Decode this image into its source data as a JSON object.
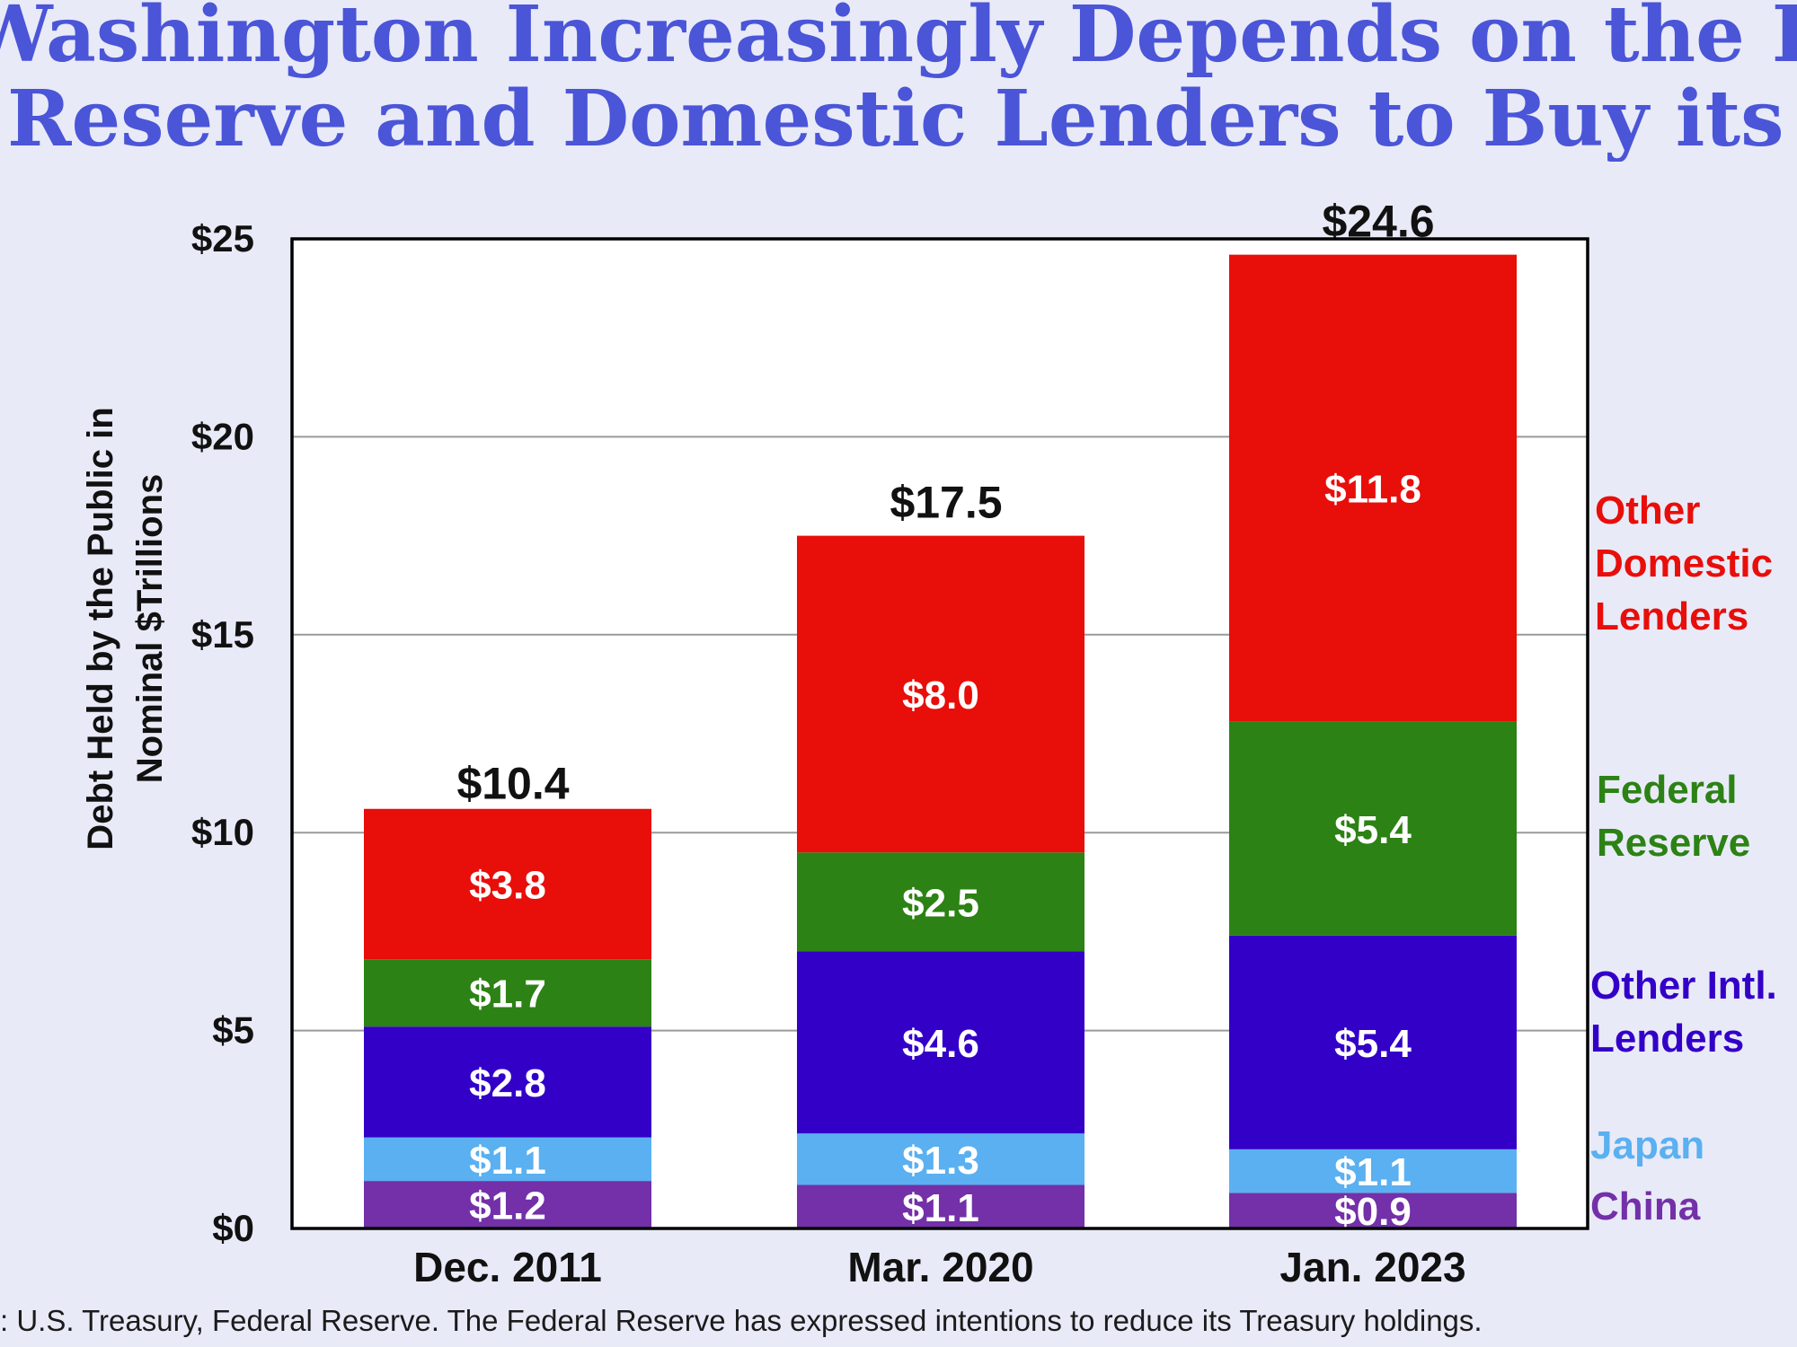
{
  "title_line1": "Washington Increasingly Depends on the Federal",
  "title_line2": "Reserve and Domestic Lenders to Buy its Debt",
  "source": ": U.S. Treasury, Federal Reserve. The Federal Reserve has expressed intentions to reduce its Treasury holdings.",
  "colors": {
    "China": "#7330a8",
    "Japan": "#5ab0f0",
    "Other Intl. Lenders": "#3300c8",
    "Federal Reserve": "#2c8214",
    "Other Domestic Lenders": "#e80e0a"
  },
  "chart_data": {
    "type": "bar",
    "stacked": true,
    "categories": [
      "Dec. 2011",
      "Mar. 2020",
      "Jan. 2023"
    ],
    "series": [
      {
        "name": "China",
        "values": [
          1.2,
          1.1,
          0.9
        ],
        "labels": [
          "$1.2",
          "$1.1",
          "$0.9"
        ]
      },
      {
        "name": "Japan",
        "values": [
          1.1,
          1.3,
          1.1
        ],
        "labels": [
          "$1.1",
          "$1.3",
          "$1.1"
        ]
      },
      {
        "name": "Other Intl. Lenders",
        "values": [
          2.8,
          4.6,
          5.4
        ],
        "labels": [
          "$2.8",
          "$4.6",
          "$5.4"
        ]
      },
      {
        "name": "Federal Reserve",
        "values": [
          1.7,
          2.5,
          5.4
        ],
        "labels": [
          "$1.7",
          "$2.5",
          "$5.4"
        ]
      },
      {
        "name": "Other Domestic Lenders",
        "values": [
          3.8,
          8.0,
          11.8
        ],
        "labels": [
          "$3.8",
          "$8.0",
          "$11.8"
        ]
      }
    ],
    "totals": [
      10.4,
      17.5,
      24.6
    ],
    "total_labels": [
      "$10.4",
      "$17.5",
      "$24.6"
    ],
    "ylabel_line1": "Debt Held by the Public in",
    "ylabel_line2": "Nominal $Trillions",
    "ylim": [
      0,
      25
    ],
    "yticks": [
      0,
      5,
      10,
      15,
      20,
      25
    ],
    "ytick_labels": [
      "$0",
      "$5",
      "$10",
      "$15",
      "$20",
      "$25"
    ],
    "grid": true,
    "legend": [
      {
        "series": "Other Domestic Lenders",
        "lines": [
          "Other",
          "Domestic",
          "Lenders"
        ]
      },
      {
        "series": "Federal Reserve",
        "lines": [
          "Federal",
          "Reserve"
        ]
      },
      {
        "series": "Other Intl. Lenders",
        "lines": [
          "Other Intl.",
          "Lenders"
        ]
      },
      {
        "series": "Japan",
        "lines": [
          "Japan"
        ]
      },
      {
        "series": "China",
        "lines": [
          "China"
        ]
      }
    ],
    "legend_placement": "right"
  }
}
